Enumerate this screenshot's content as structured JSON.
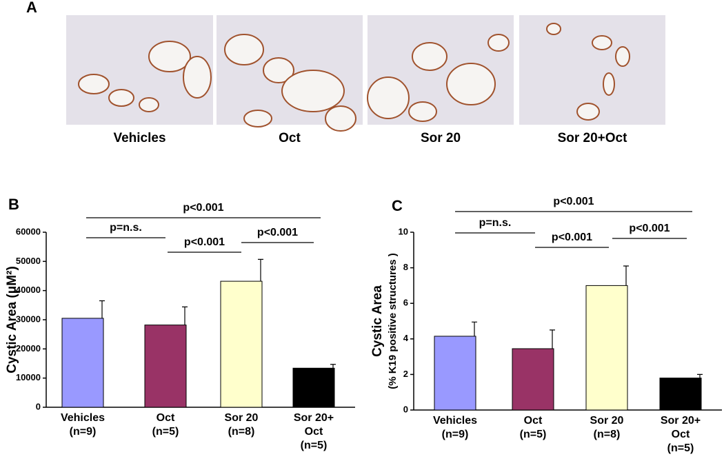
{
  "panel_a": {
    "label": "A",
    "captions": [
      "Vehicles",
      "Oct",
      "Sor 20",
      "Sor 20+Oct"
    ]
  },
  "chart_data": [
    {
      "type": "bar",
      "panel_label": "B",
      "y_label": [
        "Cystic Area (μM²)"
      ],
      "categories": [
        [
          "Vehicles",
          "(n=9)"
        ],
        [
          "Oct",
          "(n=5)"
        ],
        [
          "Sor 20",
          "(n=8)"
        ],
        [
          "Sor 20+",
          "Oct",
          "(n=5)"
        ]
      ],
      "values": [
        30500,
        28200,
        43200,
        13400
      ],
      "errors": [
        6000,
        6200,
        7500,
        1300
      ],
      "colors": [
        "#9999ff",
        "#993366",
        "#ffffcc",
        "#000000"
      ],
      "ylim": [
        0,
        60000
      ],
      "yticks": [
        0,
        10000,
        20000,
        30000,
        40000,
        50000,
        60000
      ],
      "brackets": [
        "p<0.001",
        "p=n.s.",
        "p<0.001",
        "p<0.001"
      ]
    },
    {
      "type": "bar",
      "panel_label": "C",
      "y_label": [
        "Cystic Area",
        "(% K19 positive structures )"
      ],
      "categories": [
        [
          "Vehicles",
          "(n=9)"
        ],
        [
          "Oct",
          "(n=5)"
        ],
        [
          "Sor 20",
          "(n=8)"
        ],
        [
          "Sor 20+",
          "Oct",
          "(n=5)"
        ]
      ],
      "values": [
        4.15,
        3.45,
        7.0,
        1.8
      ],
      "errors": [
        0.8,
        1.05,
        1.1,
        0.2
      ],
      "colors": [
        "#9999ff",
        "#993366",
        "#ffffcc",
        "#000000"
      ],
      "ylim": [
        0,
        10
      ],
      "yticks": [
        0,
        2,
        4,
        6,
        8,
        10
      ],
      "brackets": [
        "p<0.001",
        "p=n.s.",
        "p<0.001",
        "p<0.001"
      ]
    }
  ]
}
